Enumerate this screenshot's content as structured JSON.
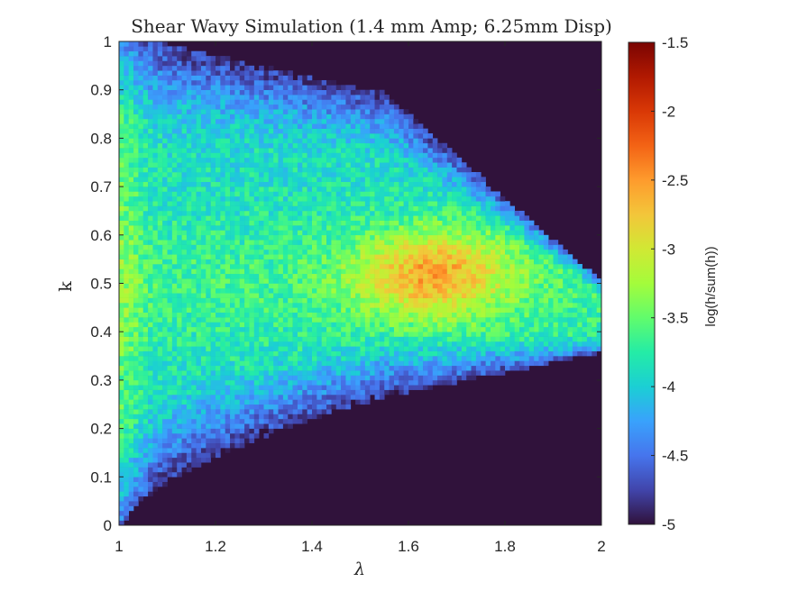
{
  "chart_data": {
    "type": "heatmap",
    "title": "Shear Wavy Simulation (1.4 mm Amp; 6.25mm Disp)",
    "xlabel": "λ",
    "ylabel": "k",
    "xlim": [
      1,
      2
    ],
    "ylim": [
      0,
      1
    ],
    "x_ticks": [
      "1",
      "1.2",
      "1.4",
      "1.6",
      "1.8",
      "2"
    ],
    "y_ticks": [
      "0",
      "0.1",
      "0.2",
      "0.3",
      "0.4",
      "0.5",
      "0.6",
      "0.7",
      "0.8",
      "0.9",
      "1"
    ],
    "grid": false,
    "bins": {
      "x": 100,
      "y": 100
    },
    "density_peak": {
      "lambda": 1.65,
      "k": 0.52,
      "log_value": -2.75
    },
    "colorbar": {
      "label": "log(h/sum(h))",
      "range": [
        -5,
        -1.5
      ],
      "ticks": [
        "-1.5",
        "-2",
        "-2.5",
        "-3",
        "-3.5",
        "-4",
        "-4.5",
        "-5"
      ],
      "colormap": "turbo",
      "stops": [
        "#30123b",
        "#4145ab",
        "#4675ed",
        "#39a2fc",
        "#1bcfd4",
        "#24eca6",
        "#61fc6c",
        "#a4fc3b",
        "#d1e834",
        "#f3c63a",
        "#fe9b2d",
        "#f36315",
        "#d93806",
        "#b11901",
        "#7a0402"
      ]
    },
    "background_color": "#30123b"
  }
}
